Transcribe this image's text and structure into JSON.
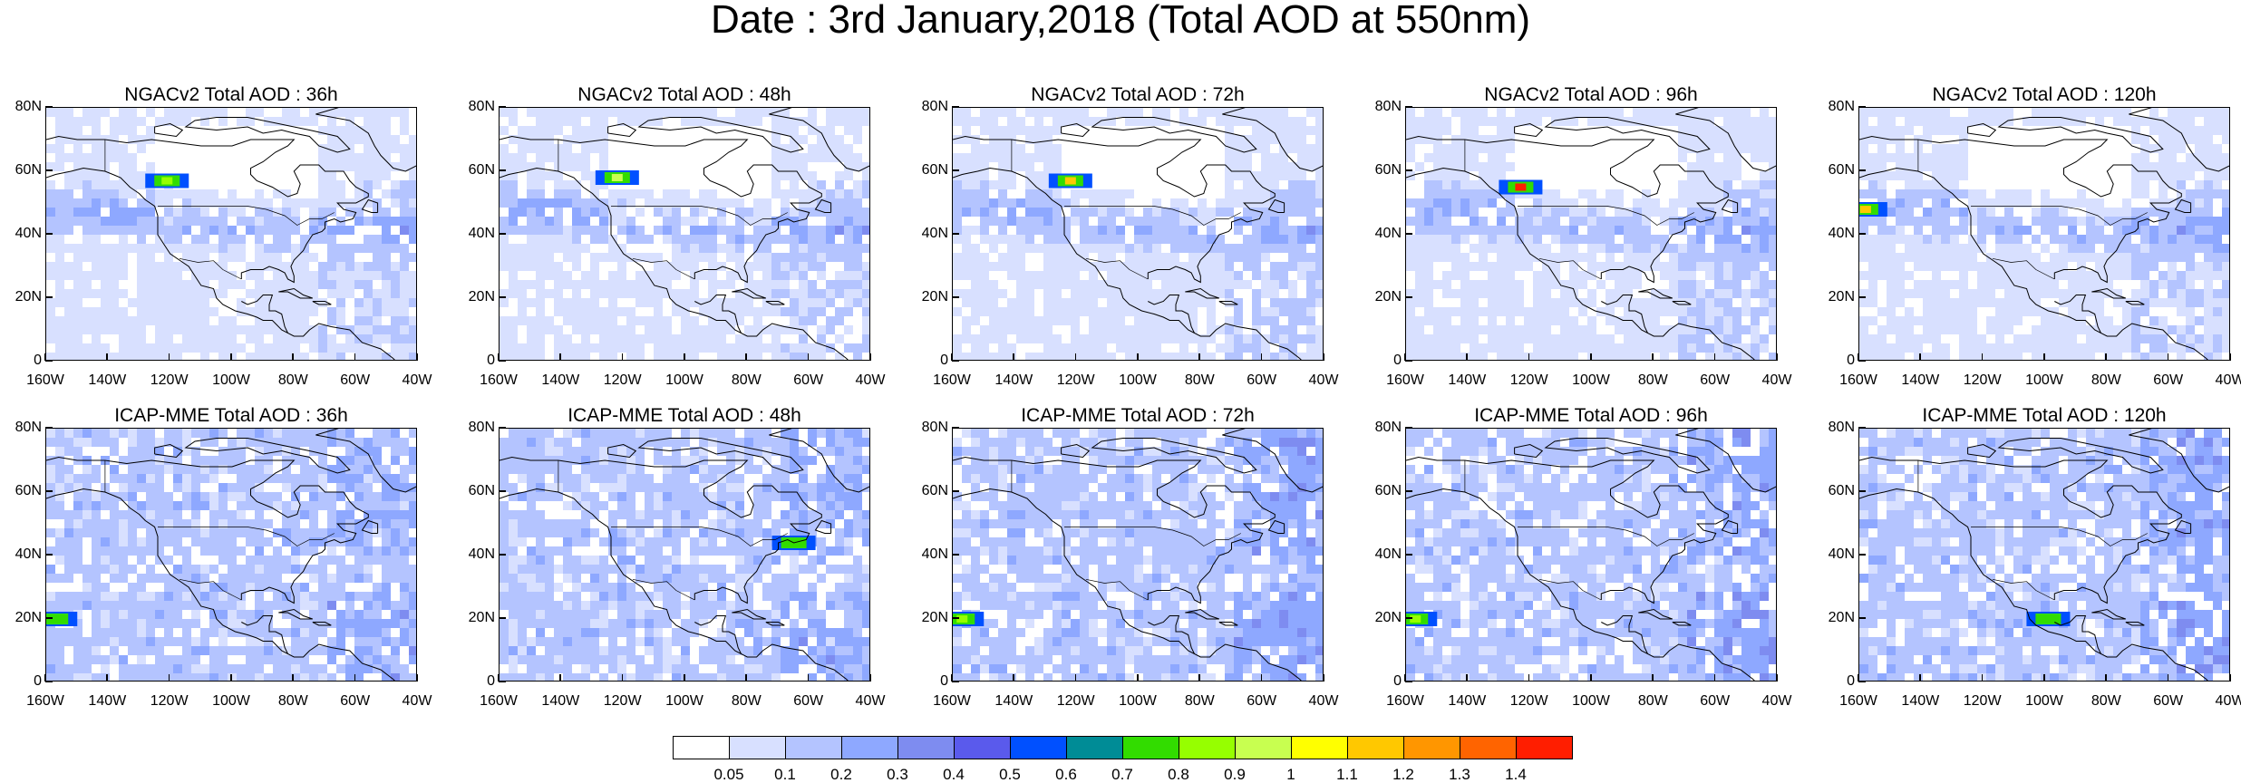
{
  "figure": {
    "title": "Date : 3rd January,2018 (Total AOD at 550nm)"
  },
  "panels": [
    {
      "title": "NGACv2 Total AOD : 36h",
      "row": 0,
      "col": 0
    },
    {
      "title": "NGACv2 Total AOD : 48h",
      "row": 0,
      "col": 1
    },
    {
      "title": "NGACv2 Total AOD : 72h",
      "row": 0,
      "col": 2
    },
    {
      "title": "NGACv2 Total AOD : 96h",
      "row": 0,
      "col": 3
    },
    {
      "title": "NGACv2 Total AOD : 120h",
      "row": 0,
      "col": 4
    },
    {
      "title": "ICAP-MME Total AOD : 36h",
      "row": 1,
      "col": 0
    },
    {
      "title": "ICAP-MME Total AOD : 48h",
      "row": 1,
      "col": 1
    },
    {
      "title": "ICAP-MME Total AOD : 72h",
      "row": 1,
      "col": 2
    },
    {
      "title": "ICAP-MME Total AOD : 96h",
      "row": 1,
      "col": 3
    },
    {
      "title": "ICAP-MME Total AOD : 120h",
      "row": 1,
      "col": 4
    }
  ],
  "axes": {
    "lat_ticks": [
      "80N",
      "60N",
      "40N",
      "20N",
      "0"
    ],
    "lon_ticks": [
      "160W",
      "140W",
      "120W",
      "100W",
      "80W",
      "60W",
      "40W"
    ],
    "lat_range": [
      0,
      80
    ],
    "lon_range": [
      -160,
      -40
    ]
  },
  "colorbar": {
    "labels": [
      "0.05",
      "0.1",
      "0.2",
      "0.3",
      "0.4",
      "0.5",
      "0.6",
      "0.7",
      "0.8",
      "0.9",
      "1",
      "1.1",
      "1.2",
      "1.3",
      "1.4"
    ],
    "colors": [
      "#ffffff",
      "#d8e0ff",
      "#b4c4ff",
      "#8ea8ff",
      "#7e8cf0",
      "#5a5aec",
      "#0050ff",
      "#008c96",
      "#32dc00",
      "#96ff00",
      "#c8ff50",
      "#ffff00",
      "#ffc800",
      "#ff9600",
      "#ff6400",
      "#ff1e00"
    ]
  },
  "chart_data": {
    "type": "heatmap",
    "title": "Date : 3rd January,2018 (Total AOD at 550nm)",
    "variable": "Total AOD at 550nm",
    "date": "3rd January,2018",
    "models": [
      "NGACv2",
      "ICAP-MME"
    ],
    "forecast_hours": [
      "36h",
      "48h",
      "72h",
      "96h",
      "120h"
    ],
    "lat_range": [
      0,
      80
    ],
    "lon_range": [
      -160,
      -40
    ],
    "contour_levels": [
      0.05,
      0.1,
      0.2,
      0.3,
      0.4,
      0.5,
      0.6,
      0.7,
      0.8,
      0.9,
      1,
      1.1,
      1.2,
      1.3,
      1.4
    ],
    "features": [
      {
        "panel": "NGACv2 Total AOD : 36h",
        "lat": 57,
        "lon": -121,
        "aod": 0.8
      },
      {
        "panel": "NGACv2 Total AOD : 48h",
        "lat": 58,
        "lon": -122,
        "aod": 0.9
      },
      {
        "panel": "NGACv2 Total AOD : 72h",
        "lat": 57,
        "lon": -122,
        "aod": 1.1
      },
      {
        "panel": "NGACv2 Total AOD : 96h",
        "lat": 55,
        "lon": -123,
        "aod": 1.4
      },
      {
        "panel": "NGACv2 Total AOD : 120h",
        "lat": 48,
        "lon": -158,
        "aod": 1.1
      },
      {
        "panel": "ICAP-MME Total AOD : 36h",
        "lat": 20,
        "lon": -157,
        "aod": 0.7
      },
      {
        "panel": "ICAP-MME Total AOD : 48h",
        "lat": 44,
        "lon": -65,
        "aod": 0.7
      },
      {
        "panel": "ICAP-MME Total AOD : 72h",
        "lat": 20,
        "lon": -157,
        "aod": 0.8
      },
      {
        "panel": "ICAP-MME Total AOD : 96h",
        "lat": 20,
        "lon": -157,
        "aod": 0.8
      },
      {
        "panel": "ICAP-MME Total AOD : 120h",
        "lat": 20,
        "lon": -99,
        "aod": 0.7
      }
    ]
  }
}
